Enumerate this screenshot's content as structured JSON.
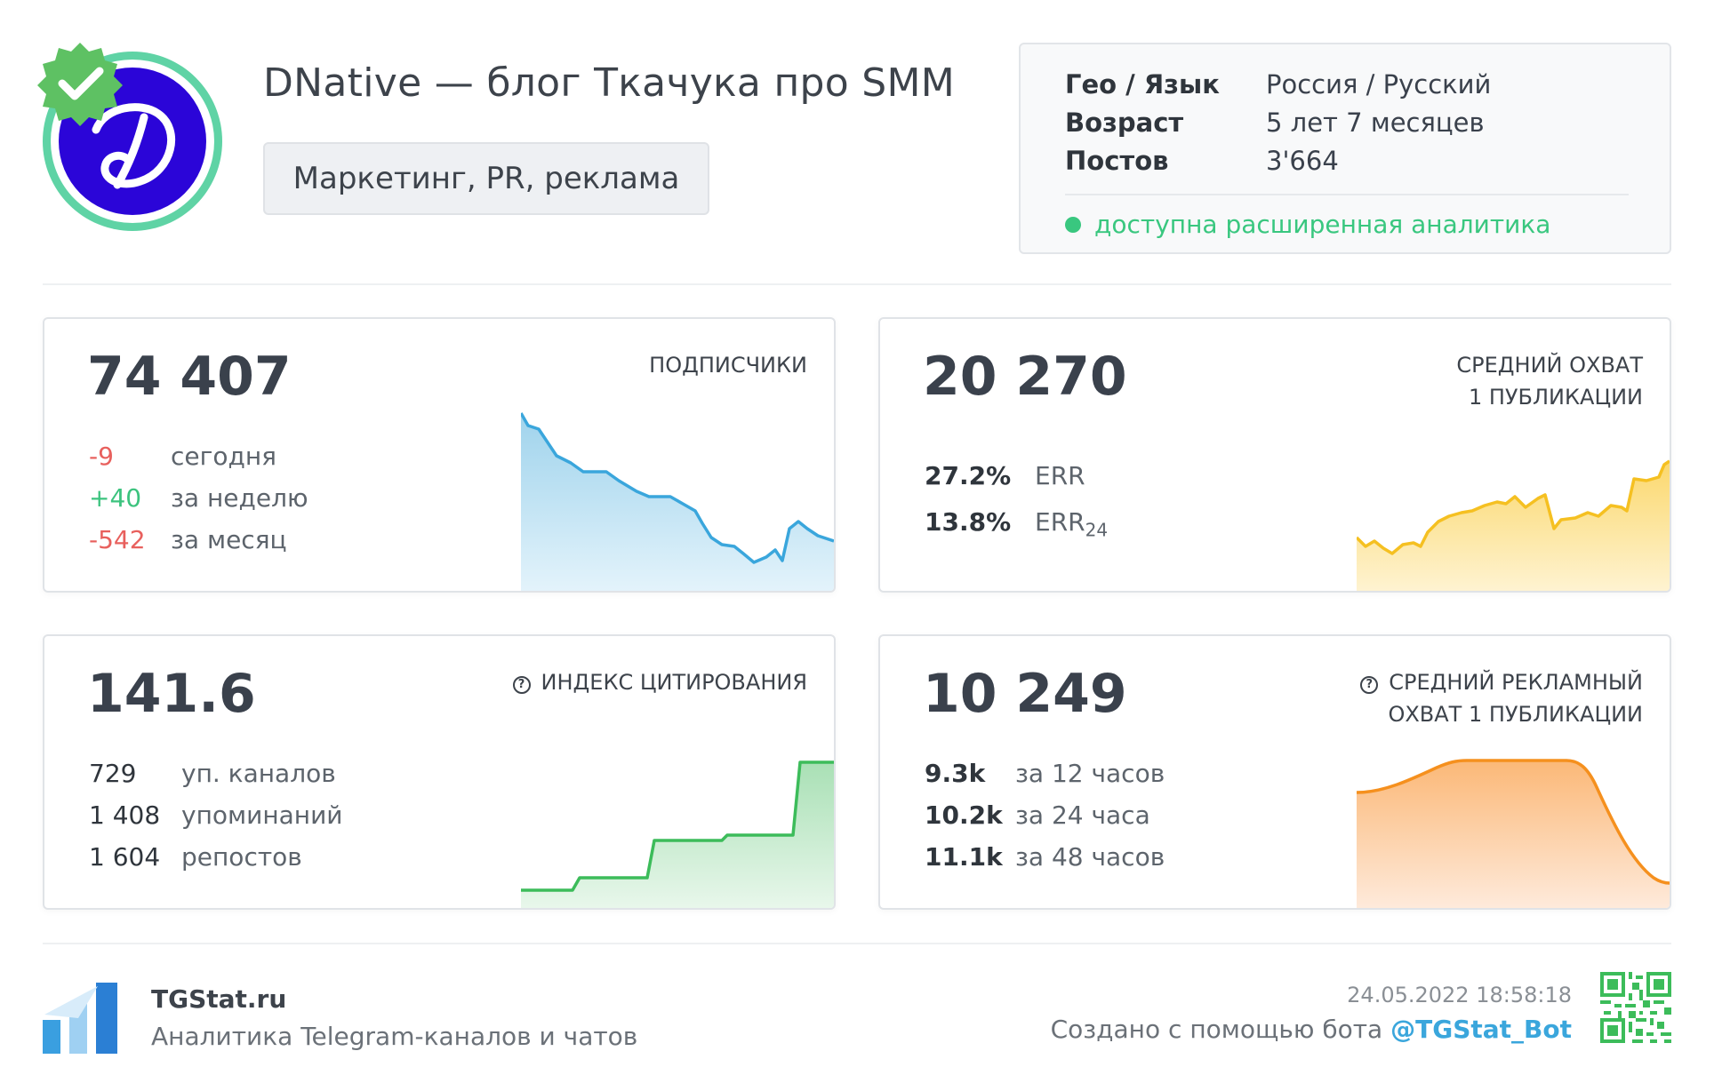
{
  "channel": {
    "title": "DNative — блог Ткачука про SMM",
    "category": "Маркетинг, PR, реклама",
    "verified": true
  },
  "info": {
    "rows": [
      {
        "key": "Гео / Язык",
        "value": "Россия / Русский"
      },
      {
        "key": "Возраст",
        "value": "5 лет 7 месяцев"
      },
      {
        "key": "Постов",
        "value": "3'664"
      }
    ],
    "analytics_note": "доступна расширенная аналитика"
  },
  "cards": {
    "subscribers": {
      "value": "74 407",
      "label": "ПОДПИСЧИКИ",
      "stats": [
        {
          "value": "-9",
          "label": "сегодня",
          "tone": "red"
        },
        {
          "value": "+40",
          "label": "за неделю",
          "tone": "green"
        },
        {
          "value": "-542",
          "label": "за месяц",
          "tone": "red"
        }
      ],
      "color": "#3aa6dc"
    },
    "reach": {
      "value": "20 270",
      "label_line1": "СРЕДНИЙ ОХВАТ",
      "label_line2": "1 ПУБЛИКАЦИИ",
      "err": {
        "value": "27.2%",
        "label": "ERR"
      },
      "err24": {
        "value": "13.8%",
        "label": "ERR",
        "sub": "24"
      },
      "color": "#f5c021"
    },
    "citation": {
      "value": "141.6",
      "label": "ИНДЕКС ЦИТИРОВАНИЯ",
      "stats": [
        {
          "value": "729",
          "label": "уп. каналов"
        },
        {
          "value": "1 408",
          "label": "упоминаний"
        },
        {
          "value": "1 604",
          "label": "репостов"
        }
      ],
      "color": "#3cbc5a"
    },
    "ad_reach": {
      "value": "10 249",
      "label_line1": "СРЕДНИЙ РЕКЛАМНЫЙ",
      "label_line2": "ОХВАТ 1 ПУБЛИКАЦИИ",
      "stats": [
        {
          "value": "9.3k",
          "label": "за 12 часов"
        },
        {
          "value": "10.2k",
          "label": "за 24 часа"
        },
        {
          "value": "11.1k",
          "label": "за 48 часов"
        }
      ],
      "color": "#f5901e"
    }
  },
  "footer": {
    "brand": "TGStat.ru",
    "subtitle": "Аналитика Telegram-каналов и чатов",
    "date": "24.05.2022 18:58:18",
    "created_prefix": "Создано с помощью бота ",
    "bot": "@TGStat_Bot"
  }
}
